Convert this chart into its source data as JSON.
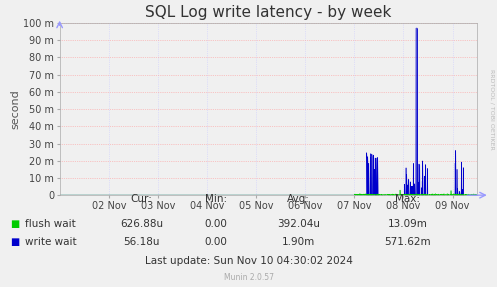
{
  "title": "SQL Log write latency - by week",
  "ylabel": "second",
  "background_color": "#f0f0f0",
  "plot_bg_color": "#f0f0f0",
  "grid_color_h": "#ff9999",
  "grid_color_v": "#ccccff",
  "ytick_labels": [
    "0",
    "10 m",
    "20 m",
    "30 m",
    "40 m",
    "50 m",
    "60 m",
    "70 m",
    "80 m",
    "90 m",
    "100 m"
  ],
  "ytick_values": [
    0,
    0.01,
    0.02,
    0.03,
    0.04,
    0.05,
    0.06,
    0.07,
    0.08,
    0.09,
    0.1
  ],
  "xticklabels": [
    "02 Nov",
    "03 Nov",
    "04 Nov",
    "05 Nov",
    "06 Nov",
    "07 Nov",
    "08 Nov",
    "09 Nov"
  ],
  "flush_wait_color": "#00cc00",
  "write_wait_color": "#0000cc",
  "stats_flush": [
    "626.88u",
    "0.00",
    "392.04u",
    "13.09m"
  ],
  "stats_write": [
    "56.18u",
    "0.00",
    "1.90m",
    "571.62m"
  ],
  "last_update": "Last update: Sun Nov 10 04:30:02 2024",
  "munin_version": "Munin 2.0.57",
  "side_label": "RRDTOOL / TOBI OETIKER",
  "ylim": [
    0,
    0.1
  ],
  "arrow_color": "#9999ff",
  "title_fontsize": 11,
  "tick_fontsize": 7,
  "stat_fontsize": 7.5
}
